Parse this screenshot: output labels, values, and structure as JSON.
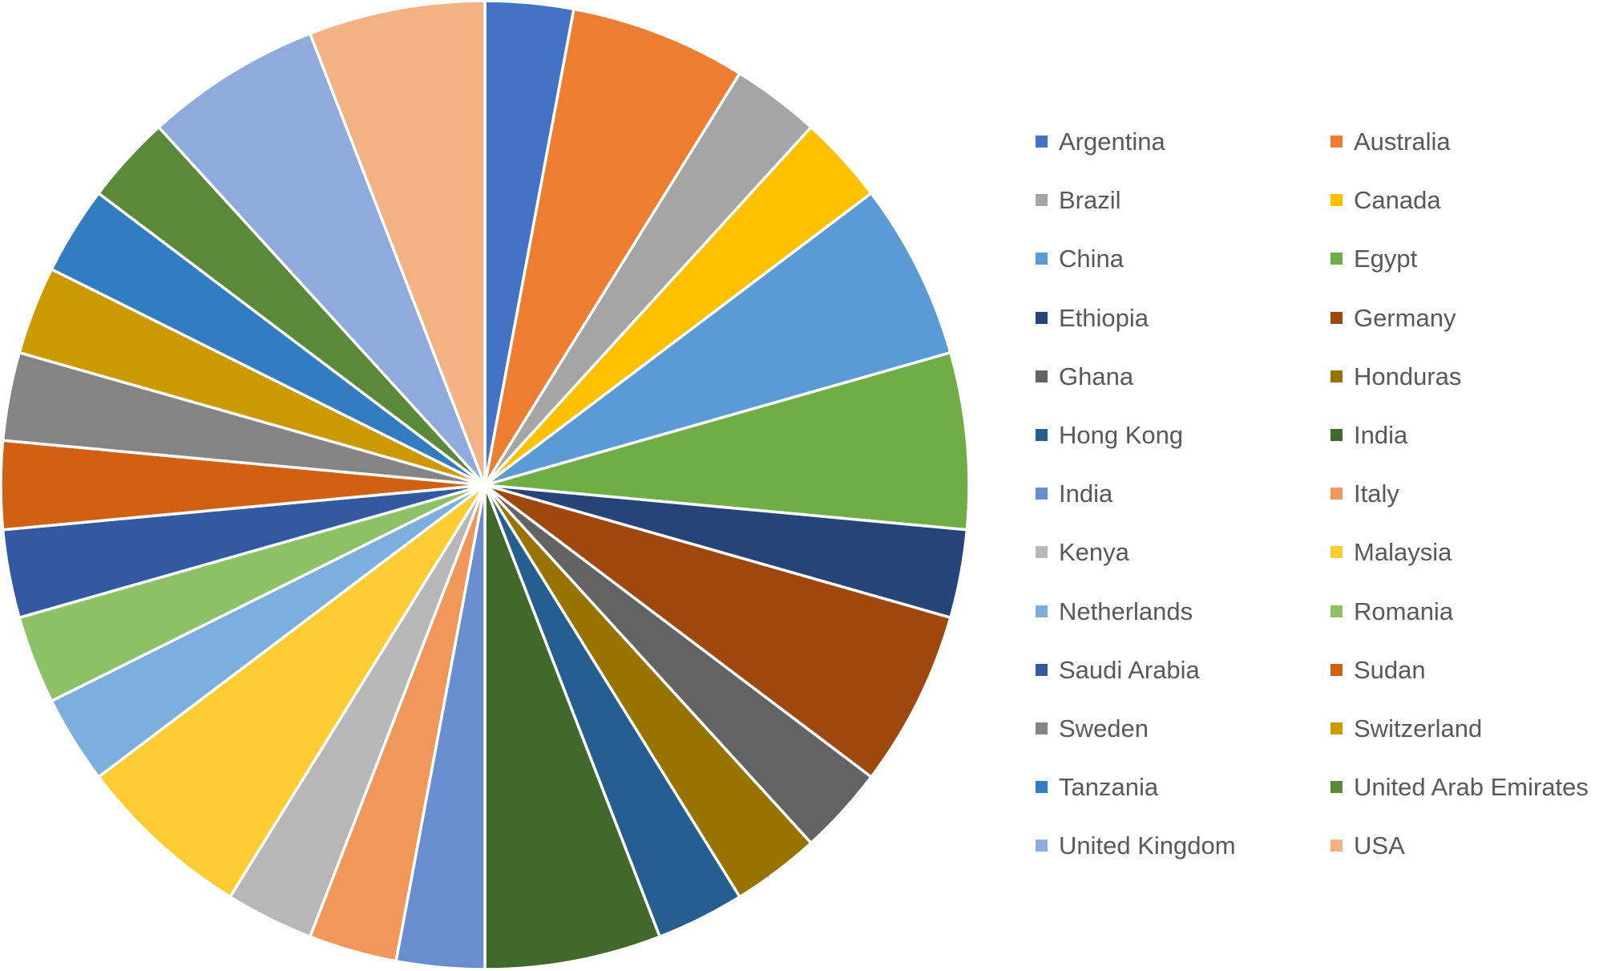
{
  "chart_data": {
    "type": "pie",
    "title": "",
    "legend_position": "right",
    "slices": [
      {
        "label": "Argentina",
        "value": 1,
        "color": "#4472C4"
      },
      {
        "label": "Australia",
        "value": 2,
        "color": "#ED7D31"
      },
      {
        "label": "Brazil",
        "value": 1,
        "color": "#A5A5A5"
      },
      {
        "label": "Canada",
        "value": 1,
        "color": "#FFC000"
      },
      {
        "label": "China",
        "value": 2,
        "color": "#5B9BD5"
      },
      {
        "label": "Egypt",
        "value": 2,
        "color": "#70AD47"
      },
      {
        "label": "Ethiopia",
        "value": 1,
        "color": "#264478"
      },
      {
        "label": "Germany",
        "value": 2,
        "color": "#9E480E"
      },
      {
        "label": "Ghana",
        "value": 1,
        "color": "#636363"
      },
      {
        "label": "Honduras",
        "value": 1,
        "color": "#997300"
      },
      {
        "label": "Hong Kong",
        "value": 1,
        "color": "#255E91"
      },
      {
        "label": "India",
        "value": 2,
        "color": "#43682B"
      },
      {
        "label": "India",
        "value": 1,
        "color": "#698ED0"
      },
      {
        "label": "Italy",
        "value": 1,
        "color": "#F1975A"
      },
      {
        "label": "Kenya",
        "value": 1,
        "color": "#B7B7B7"
      },
      {
        "label": "Malaysia",
        "value": 2,
        "color": "#FFCD33"
      },
      {
        "label": "Netherlands",
        "value": 1,
        "color": "#7CAFDD"
      },
      {
        "label": "Romania",
        "value": 1,
        "color": "#8CC168"
      },
      {
        "label": "Saudi Arabia",
        "value": 1,
        "color": "#335AA1"
      },
      {
        "label": "Sudan",
        "value": 1,
        "color": "#D26012"
      },
      {
        "label": "Sweden",
        "value": 1,
        "color": "#848484"
      },
      {
        "label": "Switzerland",
        "value": 1,
        "color": "#CC9A00"
      },
      {
        "label": "Tanzania",
        "value": 1,
        "color": "#327DC2"
      },
      {
        "label": "United Arab Emirates",
        "value": 1,
        "color": "#5A8A39"
      },
      {
        "label": "United Kingdom",
        "value": 2,
        "color": "#8FAADC"
      },
      {
        "label": "USA",
        "value": 2,
        "color": "#F4B183"
      }
    ]
  }
}
